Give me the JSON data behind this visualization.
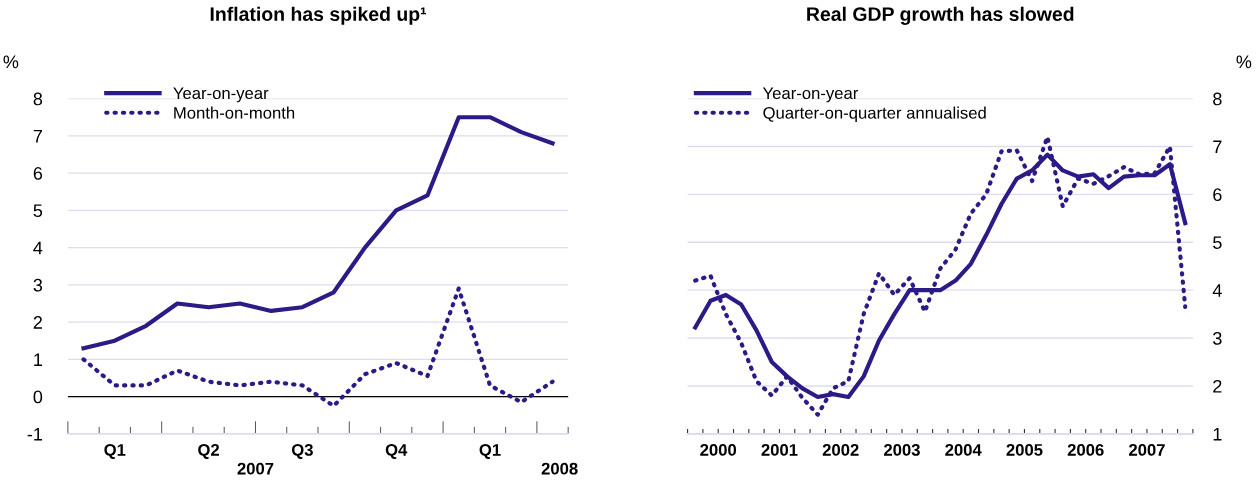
{
  "chart_data": [
    {
      "type": "line",
      "title": "Inflation has spiked up¹",
      "ylabel": "%",
      "legend": "top left",
      "grid": "y",
      "categories": [
        null,
        "Q1",
        null,
        null,
        "Q2",
        null,
        null,
        "Q3",
        null,
        null,
        "Q4",
        null,
        null,
        "Q1",
        null,
        null
      ],
      "ylim": [
        -1,
        8
      ],
      "yticks": [
        -1,
        0,
        1,
        2,
        3,
        4,
        5,
        6,
        7,
        8
      ],
      "ref_lines": [
        {
          "axis": "y",
          "value": 0,
          "color": "#000000"
        }
      ],
      "annotations": [
        "2007",
        "2008"
      ],
      "series": [
        {
          "name": "Year-on-year",
          "color": "#2e1a87",
          "line_style": "solid",
          "values": [
            1.3,
            1.5,
            1.9,
            2.5,
            2.4,
            2.5,
            2.3,
            2.4,
            2.8,
            4.0,
            5.0,
            5.4,
            7.5,
            7.5,
            7.1,
            6.8
          ]
        },
        {
          "name": "Month-on-month",
          "color": "#2e1a87",
          "line_style": "dotted",
          "values": [
            1.0,
            0.3,
            0.3,
            0.7,
            0.4,
            0.3,
            0.4,
            0.3,
            -0.25,
            0.6,
            0.9,
            0.55,
            2.9,
            0.3,
            -0.15,
            0.4
          ]
        }
      ]
    },
    {
      "type": "line",
      "title": "Real GDP growth has slowed",
      "y2label": "%",
      "legend": "top left",
      "grid": "y",
      "x": [
        2000.125,
        2000.375,
        2000.625,
        2000.875,
        2001.125,
        2001.375,
        2001.625,
        2001.875,
        2002.125,
        2002.375,
        2002.625,
        2002.875,
        2003.125,
        2003.375,
        2003.625,
        2003.875,
        2004.125,
        2004.375,
        2004.625,
        2004.875,
        2005.125,
        2005.375,
        2005.625,
        2005.875,
        2006.125,
        2006.375,
        2006.625,
        2006.875,
        2007.125,
        2007.375,
        2007.625,
        2007.875,
        2008.125
      ],
      "xlim": [
        2000,
        2008.25
      ],
      "xticks": [
        {
          "value": 2000,
          "label": null
        },
        {
          "value": 2000.25,
          "label": null
        },
        {
          "value": 2000.5,
          "label": "2000"
        },
        {
          "value": 2000.75,
          "label": null
        },
        {
          "value": 2001,
          "label": null
        },
        {
          "value": 2001.25,
          "label": null
        },
        {
          "value": 2001.5,
          "label": "2001"
        },
        {
          "value": 2001.75,
          "label": null
        },
        {
          "value": 2002,
          "label": null
        },
        {
          "value": 2002.25,
          "label": null
        },
        {
          "value": 2002.5,
          "label": "2002"
        },
        {
          "value": 2002.75,
          "label": null
        },
        {
          "value": 2003,
          "label": null
        },
        {
          "value": 2003.25,
          "label": null
        },
        {
          "value": 2003.5,
          "label": "2003"
        },
        {
          "value": 2003.75,
          "label": null
        },
        {
          "value": 2004,
          "label": null
        },
        {
          "value": 2004.25,
          "label": null
        },
        {
          "value": 2004.5,
          "label": "2004"
        },
        {
          "value": 2004.75,
          "label": null
        },
        {
          "value": 2005,
          "label": null
        },
        {
          "value": 2005.25,
          "label": null
        },
        {
          "value": 2005.5,
          "label": "2005"
        },
        {
          "value": 2005.75,
          "label": null
        },
        {
          "value": 2006,
          "label": null
        },
        {
          "value": 2006.25,
          "label": null
        },
        {
          "value": 2006.5,
          "label": "2006"
        },
        {
          "value": 2006.75,
          "label": null
        },
        {
          "value": 2007,
          "label": null
        },
        {
          "value": 2007.25,
          "label": null
        },
        {
          "value": 2007.5,
          "label": "2007"
        },
        {
          "value": 2007.75,
          "label": null
        },
        {
          "value": 2008,
          "label": null
        },
        {
          "value": 2008.25,
          "label": null
        }
      ],
      "y2lim": [
        1,
        8
      ],
      "y2ticks": [
        1,
        2,
        3,
        4,
        5,
        6,
        7,
        8
      ],
      "series": [
        {
          "name": "Year-on-year",
          "color": "#2e1a87",
          "line_style": "solid",
          "axis": "y2",
          "values": [
            3.22,
            3.78,
            3.9,
            3.7,
            3.16,
            2.5,
            2.2,
            1.95,
            1.77,
            1.83,
            1.77,
            2.2,
            2.95,
            3.5,
            4.0,
            4.0,
            4.0,
            4.2,
            4.55,
            5.15,
            5.8,
            6.33,
            6.5,
            6.83,
            6.5,
            6.37,
            6.42,
            6.13,
            6.37,
            6.4,
            6.4,
            6.63,
            5.4
          ]
        },
        {
          "name": "Quarter-on-quarter annualised",
          "color": "#2e1a87",
          "line_style": "dotted",
          "axis": "y2",
          "values": [
            4.2,
            4.3,
            3.5,
            2.9,
            2.1,
            1.8,
            2.2,
            1.75,
            1.4,
            1.95,
            2.1,
            3.5,
            4.35,
            3.9,
            4.25,
            3.55,
            4.45,
            4.85,
            5.6,
            6.0,
            6.9,
            6.92,
            6.28,
            7.2,
            5.75,
            6.33,
            6.22,
            6.38,
            6.57,
            6.42,
            6.44,
            7.0,
            3.65
          ]
        }
      ]
    }
  ]
}
